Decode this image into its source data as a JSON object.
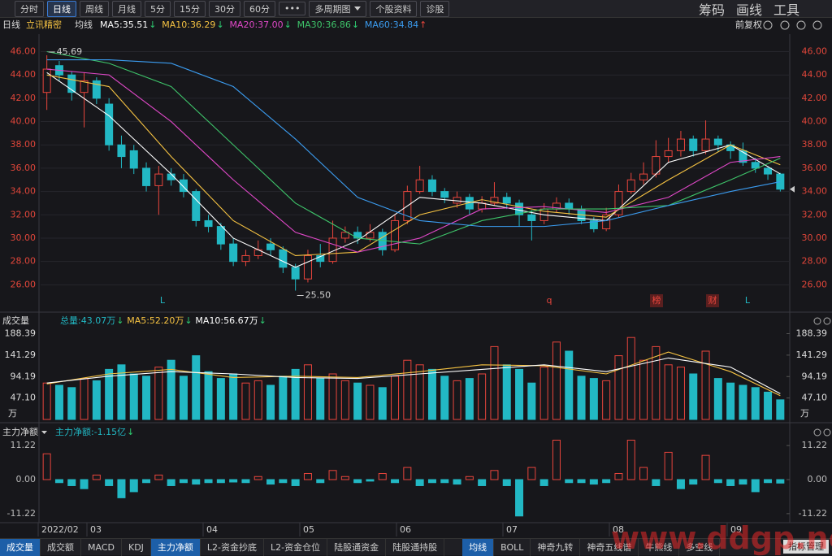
{
  "toolbar": {
    "left": [
      "分时",
      "日线",
      "周线",
      "月线",
      "5分",
      "15分",
      "30分",
      "60分",
      "•••",
      "多周期图",
      "个股资料",
      "诊股"
    ],
    "active": 1,
    "right": [
      "筹码",
      "画线",
      "工具"
    ]
  },
  "header": {
    "period": "日线",
    "stock": "立讯精密",
    "ma_label": "均线",
    "adjust": "前复权"
  },
  "x_axis": {
    "labels": [
      "2022/02",
      "03",
      "04",
      "05",
      "06",
      "07",
      "08",
      "09"
    ]
  },
  "chart_data": [
    {
      "type": "candlestick",
      "up_color": "#e8453c",
      "down_color": "#22b8c4",
      "ylim": [
        24,
        47.5
      ],
      "grid": true,
      "yticks": [
        {
          "value": 26,
          "label": "26.00"
        },
        {
          "value": 28,
          "label": "28.00"
        },
        {
          "value": 30,
          "label": "30.00"
        },
        {
          "value": 32,
          "label": "32.00"
        },
        {
          "value": 34,
          "label": "34.00"
        },
        {
          "value": 36,
          "label": "36.00"
        },
        {
          "value": 38,
          "label": "38.00"
        },
        {
          "value": 40,
          "label": "40.00"
        },
        {
          "value": 42,
          "label": "42.00"
        },
        {
          "value": 44,
          "label": "44.00"
        },
        {
          "value": 46,
          "label": "46.00"
        }
      ],
      "open": [
        42.5,
        44.8,
        44.0,
        42.5,
        43.5,
        41.5,
        38.0,
        37.5,
        36.0,
        34.5,
        35.5,
        35.0,
        34.0,
        31.5,
        31.0,
        29.5,
        28.0,
        28.5,
        29.5,
        29.0,
        27.5,
        26.5,
        28.5,
        28.0,
        30.0,
        30.5,
        30.0,
        30.5,
        29.0,
        31.5,
        34.0,
        35.0,
        34.0,
        33.0,
        33.5,
        32.5,
        33.0,
        33.5,
        33.0,
        32.0,
        31.5,
        32.5,
        33.0,
        32.5,
        31.5,
        30.8,
        32.0,
        34.0,
        35.0,
        35.5,
        37.0,
        37.5,
        38.5,
        37.5,
        38.5,
        38.0,
        37.5,
        36.5,
        36.0,
        35.5
      ],
      "high": [
        45.69,
        45.2,
        44.3,
        44.2,
        43.8,
        42.0,
        38.8,
        38.0,
        36.5,
        36.2,
        36.0,
        35.5,
        34.2,
        32.0,
        31.3,
        30.0,
        29.0,
        29.8,
        30.0,
        29.3,
        27.8,
        29.0,
        29.5,
        31.5,
        31.0,
        31.0,
        31.2,
        30.8,
        32.0,
        34.5,
        36.2,
        35.4,
        34.3,
        34.0,
        33.8,
        33.6,
        34.8,
        33.9,
        33.3,
        32.4,
        33.0,
        33.5,
        33.4,
        32.8,
        31.8,
        32.6,
        34.6,
        35.6,
        36.5,
        38.4,
        38.6,
        39.2,
        38.8,
        40.1,
        38.8,
        38.3,
        38.2,
        36.9,
        36.2,
        35.6
      ],
      "low": [
        41.0,
        43.5,
        41.8,
        39.5,
        41.5,
        37.5,
        36.0,
        35.5,
        34.0,
        32.0,
        34.5,
        33.5,
        31.0,
        30.5,
        29.0,
        27.6,
        27.6,
        28.2,
        28.5,
        27.0,
        25.5,
        26.2,
        27.5,
        27.8,
        29.6,
        29.5,
        29.7,
        28.5,
        28.8,
        31.2,
        33.8,
        33.6,
        33.0,
        32.6,
        32.0,
        32.2,
        32.8,
        32.5,
        31.0,
        29.8,
        31.2,
        32.2,
        32.0,
        31.2,
        30.5,
        30.6,
        31.8,
        33.8,
        34.6,
        35.2,
        36.5,
        37.0,
        37.0,
        37.2,
        37.4,
        36.8,
        36.2,
        35.6,
        35.0,
        34.0
      ],
      "close": [
        44.5,
        44.0,
        42.5,
        43.5,
        42.0,
        38.0,
        37.0,
        36.0,
        34.5,
        35.5,
        35.0,
        34.0,
        31.5,
        31.0,
        29.5,
        28.0,
        28.5,
        29.0,
        29.0,
        27.5,
        26.5,
        28.5,
        28.0,
        30.0,
        30.5,
        30.0,
        30.5,
        29.0,
        31.5,
        34.0,
        35.0,
        34.0,
        33.5,
        33.5,
        32.5,
        33.0,
        33.5,
        33.0,
        32.0,
        31.5,
        32.5,
        33.0,
        32.5,
        31.5,
        30.8,
        32.0,
        34.0,
        35.0,
        35.5,
        37.0,
        37.5,
        38.5,
        37.5,
        38.5,
        38.0,
        37.5,
        36.5,
        36.0,
        35.5,
        34.2
      ],
      "annotations": [
        "45.69",
        "25.50"
      ],
      "series": [
        {
          "name": "MA5",
          "label": "MA5:35.51",
          "trend": "↓",
          "color": "#ffffff",
          "x": [
            0,
            5,
            10,
            15,
            20,
            25,
            30,
            35,
            40,
            45,
            50,
            55,
            59
          ],
          "values": [
            44.2,
            40.5,
            35.5,
            30.0,
            27.5,
            29.8,
            33.5,
            33.0,
            32.0,
            31.5,
            36.5,
            38.0,
            35.51
          ]
        },
        {
          "name": "MA10",
          "label": "MA10:36.29",
          "trend": "↓",
          "color": "#f5c242",
          "x": [
            0,
            5,
            10,
            15,
            20,
            25,
            30,
            35,
            40,
            45,
            50,
            55,
            59
          ],
          "values": [
            44.0,
            43.0,
            37.0,
            31.5,
            28.5,
            28.8,
            32.0,
            33.3,
            32.3,
            31.8,
            35.0,
            38.0,
            36.29
          ]
        },
        {
          "name": "MA20",
          "label": "MA20:37.00",
          "trend": "↓",
          "color": "#e048c8",
          "x": [
            0,
            5,
            10,
            15,
            20,
            25,
            30,
            35,
            40,
            45,
            50,
            55,
            59
          ],
          "values": [
            44.5,
            44.0,
            40.0,
            35.0,
            30.5,
            28.8,
            30.0,
            32.5,
            32.7,
            32.2,
            33.5,
            36.5,
            37.0
          ]
        },
        {
          "name": "MA30",
          "label": "MA30:36.86",
          "trend": "↓",
          "color": "#3ec46a",
          "x": [
            0,
            5,
            10,
            15,
            20,
            25,
            30,
            35,
            40,
            45,
            50,
            55,
            59
          ],
          "values": [
            46.0,
            45.0,
            43.0,
            38.0,
            33.0,
            30.0,
            29.5,
            31.5,
            32.5,
            32.5,
            32.8,
            35.0,
            36.86
          ]
        },
        {
          "name": "MA60",
          "label": "MA60:34.84",
          "trend": "↑",
          "color": "#3b9cf0",
          "x": [
            0,
            5,
            10,
            15,
            20,
            25,
            30,
            35,
            40,
            45,
            50,
            55,
            59
          ],
          "values": [
            45.3,
            45.3,
            45.0,
            43.0,
            38.5,
            33.5,
            31.5,
            31.0,
            31.0,
            31.5,
            32.8,
            34.0,
            34.84
          ]
        }
      ],
      "events": [
        {
          "label": "L",
          "color": "#22b8c4"
        },
        {
          "label": "q",
          "color": "#e8453c"
        },
        {
          "label": "榜",
          "color": "#e8453c"
        },
        {
          "label": "财",
          "color": "#e8453c"
        },
        {
          "label": "L",
          "color": "#22b8c4"
        }
      ]
    },
    {
      "type": "bar",
      "title": "成交量",
      "unit": "万",
      "total_label": "总量:43.07万",
      "total_trend": "↓",
      "ylim": [
        0,
        200
      ],
      "yticks": [
        {
          "value": 47.1,
          "label": "47.10"
        },
        94.19,
        141.29,
        188.39
      ],
      "values": [
        80,
        75,
        70,
        90,
        85,
        110,
        120,
        100,
        95,
        115,
        130,
        95,
        140,
        105,
        90,
        100,
        80,
        85,
        75,
        95,
        110,
        120,
        90,
        100,
        85,
        80,
        75,
        70,
        95,
        130,
        120,
        110,
        95,
        85,
        90,
        100,
        160,
        120,
        110,
        80,
        115,
        170,
        150,
        95,
        90,
        85,
        140,
        180,
        130,
        160,
        120,
        115,
        100,
        150,
        90,
        80,
        75,
        70,
        60,
        43.07
      ],
      "series": [
        {
          "name": "MA5",
          "label": "MA5:52.20万",
          "trend": "↓",
          "color": "#f5c242",
          "x": [
            0,
            5,
            10,
            15,
            20,
            25,
            30,
            35,
            40,
            45,
            50,
            55,
            59
          ],
          "values": [
            78,
            100,
            110,
            92,
            95,
            92,
            105,
            120,
            118,
            100,
            148,
            105,
            52.2
          ]
        },
        {
          "name": "MA10",
          "label": "MA10:56.67万",
          "trend": "↓",
          "color": "#ffffff",
          "x": [
            0,
            5,
            10,
            15,
            20,
            25,
            30,
            35,
            40,
            45,
            50,
            55,
            59
          ],
          "values": [
            80,
            95,
            105,
            100,
            92,
            90,
            100,
            110,
            120,
            105,
            135,
            115,
            56.67
          ]
        }
      ]
    },
    {
      "type": "bar",
      "title": "主力净额",
      "total_label": "主力净额:-1.15亿",
      "total_trend": "↓",
      "ylim": [
        -13.4,
        13.4
      ],
      "yticks": [
        -11.22,
        {
          "value": 0,
          "label": "0.00"
        },
        11.22
      ],
      "values": [
        8.5,
        -1,
        -2,
        -3,
        1.5,
        -2,
        -6,
        -4,
        -1,
        1.5,
        -2,
        -1,
        -1.5,
        -1,
        -1,
        -0.8,
        -1,
        1,
        -1.5,
        -1,
        -2,
        2,
        -1,
        3,
        1,
        -1,
        -0.5,
        2,
        -1,
        4,
        -2,
        -1,
        -1,
        -1.5,
        1,
        -2,
        3,
        -2,
        -12,
        4,
        -2,
        13,
        -1,
        -1,
        -1.5,
        -1,
        2,
        13,
        4,
        -2,
        9,
        -3,
        -1.5,
        8,
        -1,
        -2,
        -1.5,
        -4,
        -1,
        -1.15
      ]
    }
  ],
  "bottom_tabs": {
    "left": [
      "成交量",
      "成交额",
      "MACD",
      "KDJ",
      "主力净额",
      "L2-资金抄底",
      "L2-资金仓位",
      "陆股通资金",
      "陆股通持股"
    ],
    "right": [
      "均线",
      "BOLL",
      "神奇九转",
      "神奇五线谱",
      "牛熊线",
      "多空线"
    ],
    "manage": "指标管理"
  },
  "watermark": "www.ddgp.net"
}
